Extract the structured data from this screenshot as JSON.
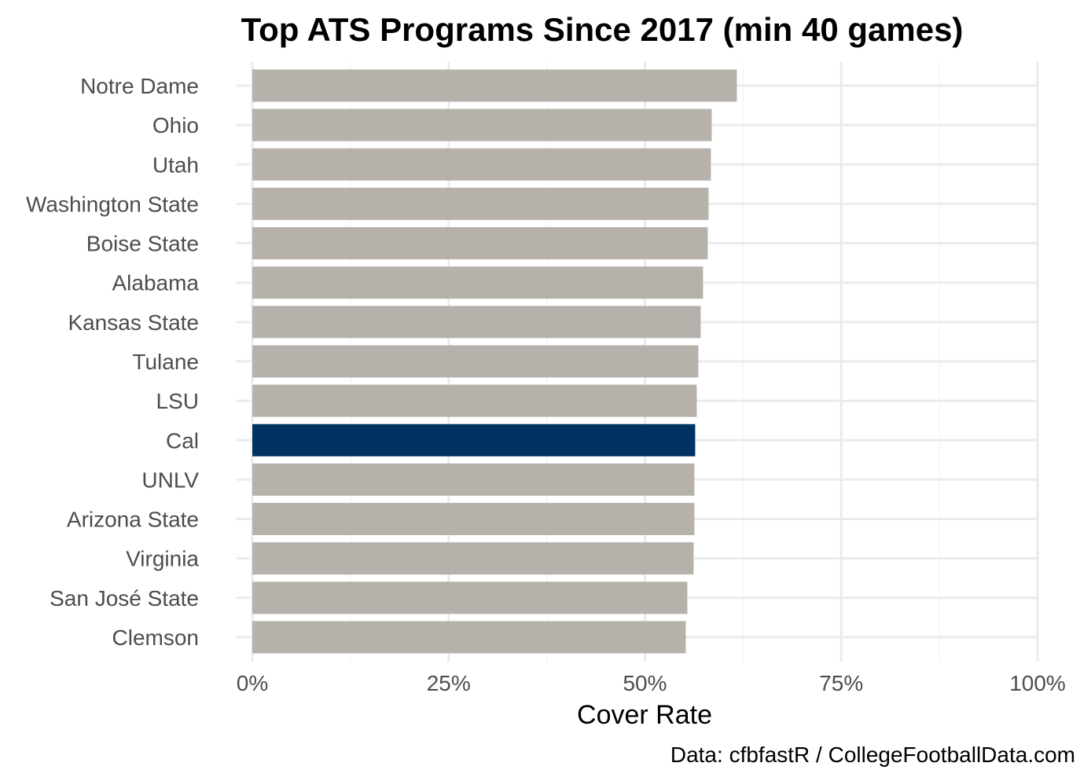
{
  "chart_data": {
    "type": "bar",
    "orientation": "horizontal",
    "title": "Top ATS Programs Since 2017 (min 40 games)",
    "xlabel": "Cover Rate",
    "ylabel": "",
    "caption": "Data: cfbfastR / CollegeFootballData.com",
    "xlim": [
      0,
      1
    ],
    "x_ticks": [
      0,
      0.25,
      0.5,
      0.75,
      1.0
    ],
    "x_tick_labels": [
      "0%",
      "25%",
      "50%",
      "75%",
      "100%"
    ],
    "grid": true,
    "legend": "none",
    "categories": [
      "Notre Dame",
      "Ohio",
      "Utah",
      "Washington State",
      "Boise State",
      "Alabama",
      "Kansas State",
      "Tulane",
      "LSU",
      "Cal",
      "UNLV",
      "Arizona State",
      "Virginia",
      "San José State",
      "Clemson"
    ],
    "values": [
      0.617,
      0.585,
      0.584,
      0.581,
      0.58,
      0.574,
      0.571,
      0.568,
      0.566,
      0.564,
      0.563,
      0.563,
      0.562,
      0.554,
      0.552
    ],
    "highlight": "Cal",
    "colors": {
      "default": "#b6b2ab",
      "highlight": "#003262"
    }
  }
}
